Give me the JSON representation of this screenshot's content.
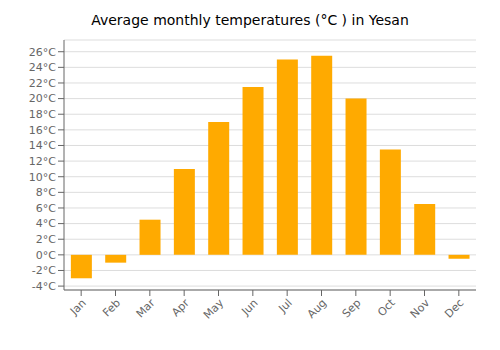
{
  "chart_data": {
    "type": "bar",
    "title": "Average monthly temperatures (°C ) in Yesan",
    "categories": [
      "Jan",
      "Feb",
      "Mar",
      "Apr",
      "May",
      "Jun",
      "Jul",
      "Aug",
      "Sep",
      "Oct",
      "Nov",
      "Dec"
    ],
    "values": [
      -3.0,
      -1.0,
      4.5,
      11.0,
      17.0,
      21.5,
      25.0,
      25.5,
      20.0,
      13.5,
      6.5,
      -0.5
    ],
    "color": "#FFAA00",
    "ylim": [
      -4.5,
      27.5
    ],
    "yticks": [
      {
        "value": -4,
        "label": "-4°C"
      },
      {
        "value": -2,
        "label": "-2°C"
      },
      {
        "value": 0,
        "label": "0°C"
      },
      {
        "value": 2,
        "label": "2°C"
      },
      {
        "value": 4,
        "label": "4°C"
      },
      {
        "value": 6,
        "label": "6°C"
      },
      {
        "value": 8,
        "label": "8°C"
      },
      {
        "value": 10,
        "label": "10°C"
      },
      {
        "value": 12,
        "label": "12°C"
      },
      {
        "value": 14,
        "label": "14°C"
      },
      {
        "value": 16,
        "label": "16°C"
      },
      {
        "value": 18,
        "label": "18°C"
      },
      {
        "value": 20,
        "label": "20°C"
      },
      {
        "value": 22,
        "label": "22°C"
      },
      {
        "value": 24,
        "label": "24°C"
      },
      {
        "value": 26,
        "label": "26°C"
      }
    ],
    "grid": true
  }
}
